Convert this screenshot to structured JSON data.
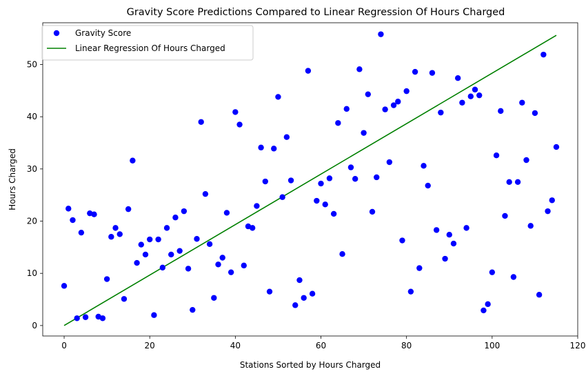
{
  "chart_data": {
    "type": "scatter",
    "title": "Gravity Score Predictions Compared to Linear Regression Of Hours Charged",
    "xlabel": "Stations Sorted by Hours Charged",
    "ylabel": "Hours Charged",
    "xlim": [
      -5,
      120
    ],
    "ylim": [
      -2,
      58
    ],
    "xticks": [
      0,
      20,
      40,
      60,
      80,
      100,
      120
    ],
    "yticks": [
      0,
      10,
      20,
      30,
      40,
      50
    ],
    "grid": false,
    "legend_position": "top-left",
    "series": [
      {
        "name": "Gravity Score",
        "kind": "scatter",
        "color": "#0000ff",
        "x": [
          0,
          1,
          2,
          3,
          4,
          5,
          6,
          7,
          8,
          9,
          10,
          11,
          12,
          13,
          14,
          15,
          16,
          17,
          18,
          19,
          20,
          21,
          22,
          23,
          24,
          25,
          26,
          27,
          28,
          29,
          30,
          31,
          32,
          33,
          34,
          35,
          36,
          37,
          38,
          39,
          40,
          41,
          42,
          43,
          44,
          45,
          46,
          47,
          48,
          49,
          50,
          51,
          52,
          53,
          54,
          55,
          56,
          57,
          58,
          59,
          60,
          61,
          62,
          63,
          64,
          65,
          66,
          67,
          68,
          69,
          70,
          71,
          72,
          73,
          74,
          75,
          76,
          77,
          78,
          79,
          80,
          81,
          82,
          83,
          84,
          85,
          86,
          87,
          88,
          89,
          90,
          91,
          92,
          93,
          94,
          95,
          96,
          97,
          98,
          99,
          100,
          101,
          102,
          103,
          104,
          105,
          106,
          107,
          108,
          109,
          110,
          111,
          112,
          113,
          114,
          115
        ],
        "y": [
          7.6,
          22.4,
          20.2,
          1.4,
          17.8,
          1.6,
          21.5,
          21.3,
          1.7,
          1.4,
          8.9,
          17.0,
          18.7,
          17.5,
          5.1,
          22.3,
          31.6,
          12.0,
          15.5,
          13.6,
          16.5,
          2.0,
          16.5,
          11.1,
          18.7,
          13.6,
          20.7,
          14.3,
          21.9,
          10.9,
          3.0,
          16.6,
          39.0,
          25.2,
          15.6,
          5.3,
          11.7,
          13.0,
          21.6,
          10.2,
          40.9,
          38.5,
          11.5,
          19.0,
          18.7,
          22.9,
          34.1,
          27.6,
          6.5,
          33.9,
          43.8,
          24.6,
          36.1,
          27.8,
          3.9,
          8.7,
          5.3,
          48.8,
          6.1,
          23.9,
          27.2,
          23.2,
          28.2,
          21.4,
          38.8,
          13.7,
          41.5,
          30.3,
          28.1,
          49.1,
          36.9,
          44.3,
          21.8,
          28.4,
          55.8,
          41.4,
          31.3,
          42.2,
          42.9,
          16.3,
          44.9,
          6.5,
          48.6,
          11.0,
          30.6,
          26.8,
          48.4,
          18.3,
          40.8,
          12.8,
          17.4,
          15.7,
          47.4,
          42.7,
          18.7,
          43.9,
          45.2,
          44.1,
          2.9,
          4.1,
          10.2,
          32.6,
          41.1,
          21.0,
          27.5,
          9.3,
          27.5,
          42.7,
          31.7,
          19.1,
          40.7,
          5.9,
          51.9,
          21.9,
          24.0,
          34.2
        ]
      },
      {
        "name": "Linear Regression Of Hours Charged",
        "kind": "line",
        "color": "#008000",
        "x": [
          0,
          115
        ],
        "y": [
          0,
          55.6
        ]
      }
    ]
  }
}
